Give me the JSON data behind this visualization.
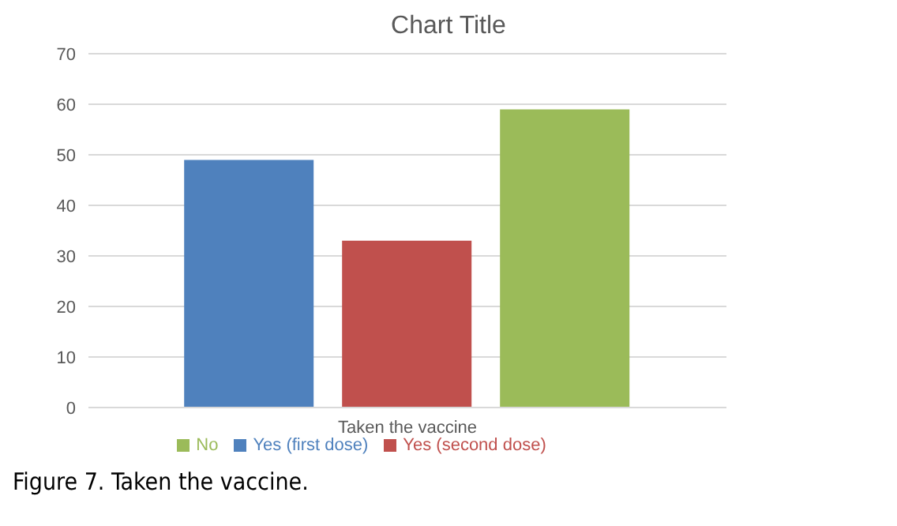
{
  "chart_data": {
    "type": "bar",
    "title": "Chart Title",
    "categories": [
      "Taken the vaccine"
    ],
    "series": [
      {
        "name": "Yes (first dose)",
        "color": "#4f81bd",
        "values": [
          49
        ]
      },
      {
        "name": "Yes (second dose)",
        "color": "#c0504d",
        "values": [
          33
        ]
      },
      {
        "name": "No",
        "color": "#9bbb59",
        "values": [
          59
        ]
      }
    ],
    "ylim": [
      0,
      70
    ],
    "yticks": [
      0,
      10,
      20,
      30,
      40,
      50,
      60,
      70
    ],
    "grid": "y",
    "legend": "bottom",
    "annotations": [
      "Figure 7. Taken the vaccine."
    ]
  }
}
